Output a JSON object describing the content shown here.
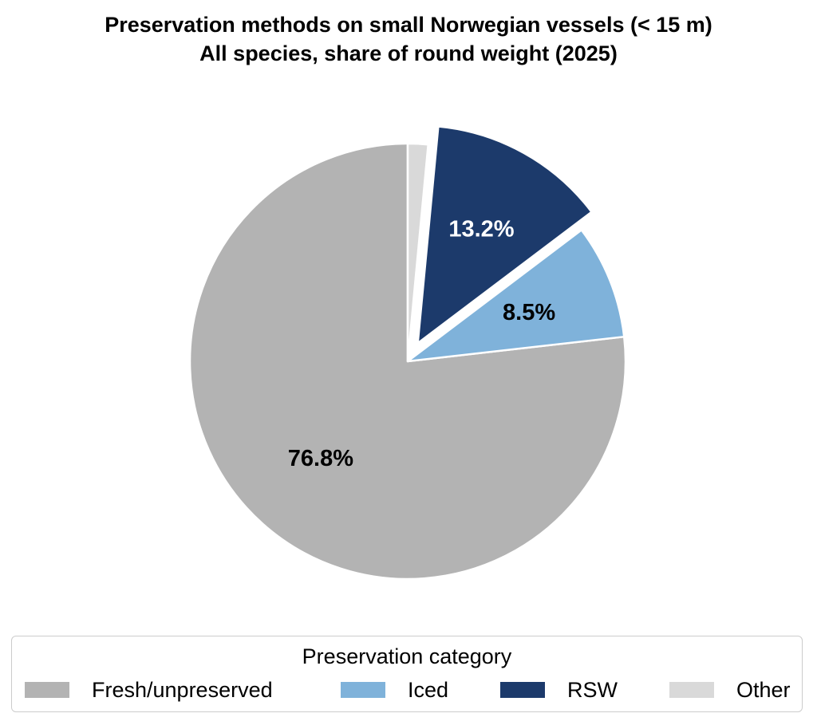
{
  "chart_data": {
    "type": "pie",
    "title": "Preservation methods on small Norwegian vessels (< 15 m)",
    "subtitle": "All species, share of round weight (2025)",
    "categories": [
      "Fresh/unpreserved",
      "Iced",
      "RSW",
      "Other"
    ],
    "values": [
      76.8,
      8.5,
      13.2,
      1.5
    ],
    "data_labels": [
      "76.8%",
      "8.5%",
      "13.2%",
      ""
    ],
    "colors": [
      "#b3b3b3",
      "#7fb2da",
      "#1c3a6b",
      "#d9d9d9"
    ],
    "label_colors": [
      "#000000",
      "#000000",
      "#ffffff",
      "#000000"
    ],
    "exploded": [
      "RSW"
    ],
    "start": "top",
    "direction": "counterclockwise",
    "legend": {
      "title": "Preservation category",
      "placement": "bottom"
    }
  }
}
